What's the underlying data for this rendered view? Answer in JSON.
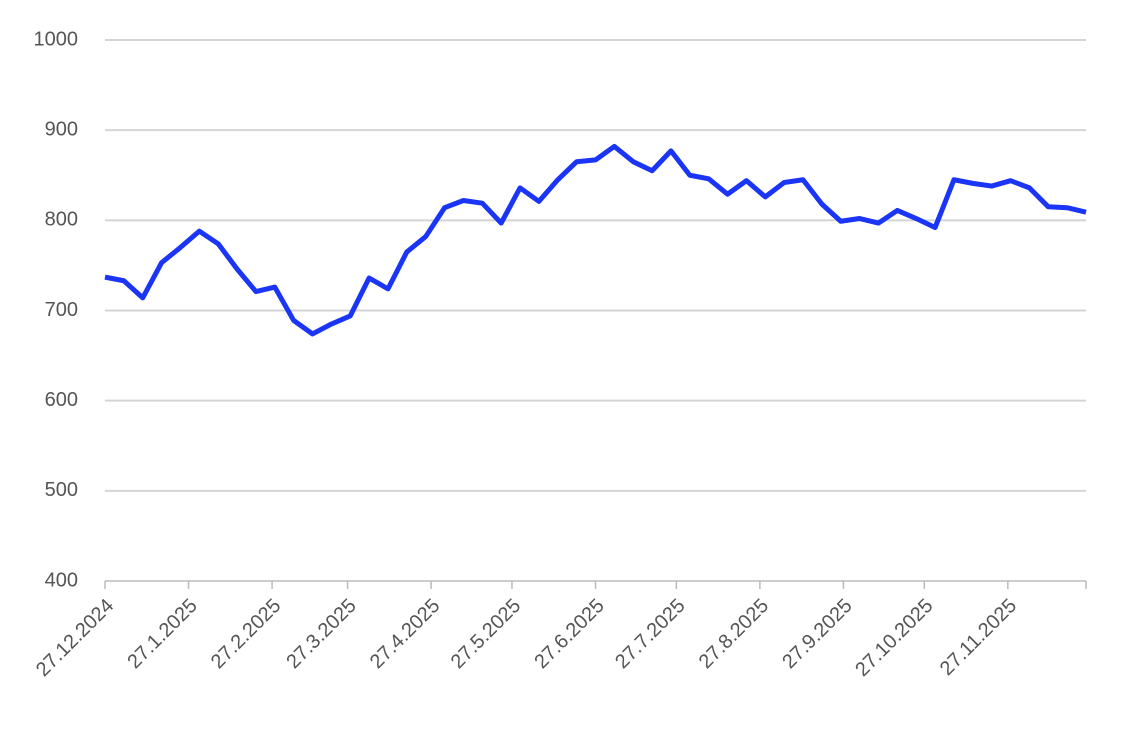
{
  "chart_data": {
    "type": "line",
    "x": [
      "2024-12-27",
      "2025-01-03",
      "2025-01-10",
      "2025-01-17",
      "2025-01-24",
      "2025-01-31",
      "2025-02-07",
      "2025-02-14",
      "2025-02-21",
      "2025-02-28",
      "2025-03-07",
      "2025-03-14",
      "2025-03-21",
      "2025-03-28",
      "2025-04-04",
      "2025-04-11",
      "2025-04-18",
      "2025-04-25",
      "2025-05-02",
      "2025-05-09",
      "2025-05-16",
      "2025-05-23",
      "2025-05-30",
      "2025-06-06",
      "2025-06-13",
      "2025-06-20",
      "2025-06-27",
      "2025-07-04",
      "2025-07-11",
      "2025-07-18",
      "2025-07-25",
      "2025-08-01",
      "2025-08-08",
      "2025-08-15",
      "2025-08-22",
      "2025-08-29",
      "2025-09-05",
      "2025-09-12",
      "2025-09-19",
      "2025-09-26",
      "2025-10-03",
      "2025-10-10",
      "2025-10-17",
      "2025-10-24",
      "2025-10-31",
      "2025-11-07",
      "2025-11-14",
      "2025-11-21",
      "2025-11-28",
      "2025-12-05",
      "2025-12-12",
      "2025-12-19",
      "2025-12-26"
    ],
    "series": [
      {
        "color": "#1a35f5",
        "values": [
          737,
          733,
          714,
          753,
          770,
          788,
          774,
          746,
          721,
          726,
          689,
          674,
          685,
          694,
          736,
          724,
          765,
          782,
          814,
          822,
          819,
          797,
          836,
          821,
          845,
          865,
          867,
          882,
          865,
          855,
          877,
          850,
          846,
          829,
          844,
          826,
          842,
          845,
          818,
          799,
          802,
          797,
          811,
          802,
          792,
          845,
          841,
          838,
          844,
          836,
          815,
          814,
          809
        ]
      }
    ],
    "xlim": [
      "2024-12-27",
      "2025-12-26"
    ],
    "xticks": [
      {
        "value": "2024-12-27",
        "label": "27.12.2024"
      },
      {
        "value": "2025-01-27",
        "label": "27.1.2025"
      },
      {
        "value": "2025-02-27",
        "label": "27.2.2025"
      },
      {
        "value": "2025-03-27",
        "label": "27.3.2025"
      },
      {
        "value": "2025-04-27",
        "label": "27.4.2025"
      },
      {
        "value": "2025-05-27",
        "label": "27.5.2025"
      },
      {
        "value": "2025-06-27",
        "label": "27.6.2025"
      },
      {
        "value": "2025-07-27",
        "label": "27.7.2025"
      },
      {
        "value": "2025-08-27",
        "label": "27.8.2025"
      },
      {
        "value": "2025-09-27",
        "label": "27.9.2025"
      },
      {
        "value": "2025-10-27",
        "label": "27.10.2025"
      },
      {
        "value": "2025-11-27",
        "label": "27.11.2025"
      }
    ],
    "ylim": [
      400,
      1000
    ],
    "yticks": [
      400,
      500,
      600,
      700,
      800,
      900,
      1000
    ],
    "grid": true
  }
}
